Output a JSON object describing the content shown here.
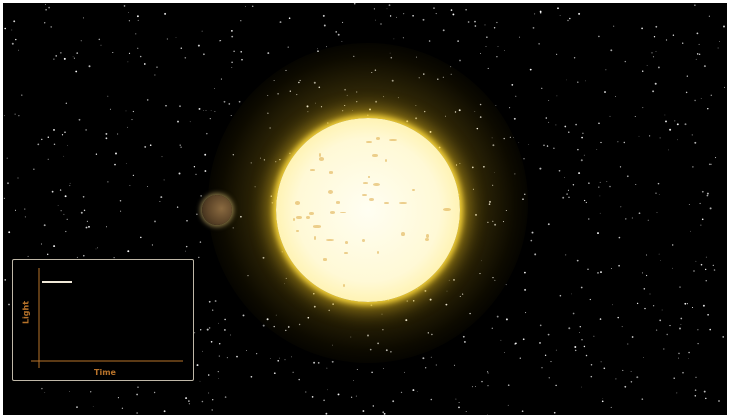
{
  "graph": {
    "y_axis_label": "Light",
    "x_axis_label": "Time"
  },
  "colors": {
    "background": "#000000",
    "star_core": "#fffef2",
    "star_edge": "#e6c630",
    "axis": "#b8732a",
    "light_curve": "#f0e8d8",
    "panel_border": "#bfb8a8"
  }
}
